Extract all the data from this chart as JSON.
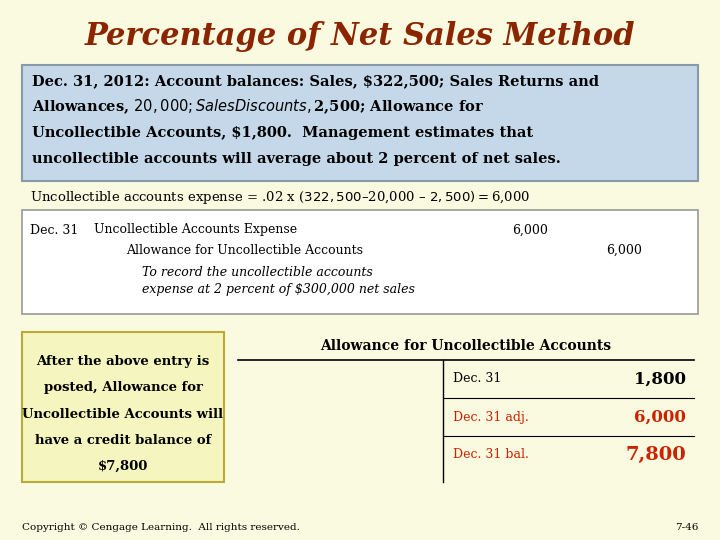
{
  "title": "Percentage of Net Sales Method",
  "title_color": "#8B2500",
  "bg_color": "#FAFAE0",
  "box1_bg": "#C4D8EA",
  "box1_border": "#8899AA",
  "box1_line1": "Dec. 31, 2012: Account balances: Sales, $322,500; Sales Returns and",
  "box1_line2": "Allowances, $20,000; Sales Discounts, $2,500; Allowance for",
  "box1_line3": "Uncollectible Accounts, $1,800.  Management estimates that",
  "box1_line4": "uncollectible accounts will average about 2 percent of net sales.",
  "formula_text": "Uncollectible accounts expense = .02 x ($322,500 – $20,000 – $2,500) = $6,000",
  "journal_date": "Dec. 31",
  "journal_line1_account": "Uncollectible Accounts Expense",
  "journal_line1_debit": "6,000",
  "journal_line2_account": "Allowance for Uncollectible Accounts",
  "journal_line2_credit": "6,000",
  "journal_line3": "To record the uncollectible accounts",
  "journal_line4": "expense at 2 percent of $300,000 net sales",
  "left_box_line1": "After the above entry is",
  "left_box_line2": "posted, Allowance for",
  "left_box_line3": "Uncollectible Accounts will",
  "left_box_line4": "have a credit balance of",
  "left_box_line5": "$7,800",
  "left_box_bg": "#F5F5C0",
  "left_box_border": "#BBAA33",
  "tledger_title": "Allowance for Uncollectible Accounts",
  "tledger_row1_label": "Dec. 31",
  "tledger_row1_value": "1,800",
  "tledger_row2_label": "Dec. 31 adj.",
  "tledger_row2_value": "6,000",
  "tledger_row3_label": "Dec. 31 bal.",
  "tledger_row3_value": "7,800",
  "black": "#000000",
  "red_color": "#CC2200",
  "copyright_text": "Copyright © Cengage Learning.  All rights reserved.",
  "page_num": "7-46"
}
